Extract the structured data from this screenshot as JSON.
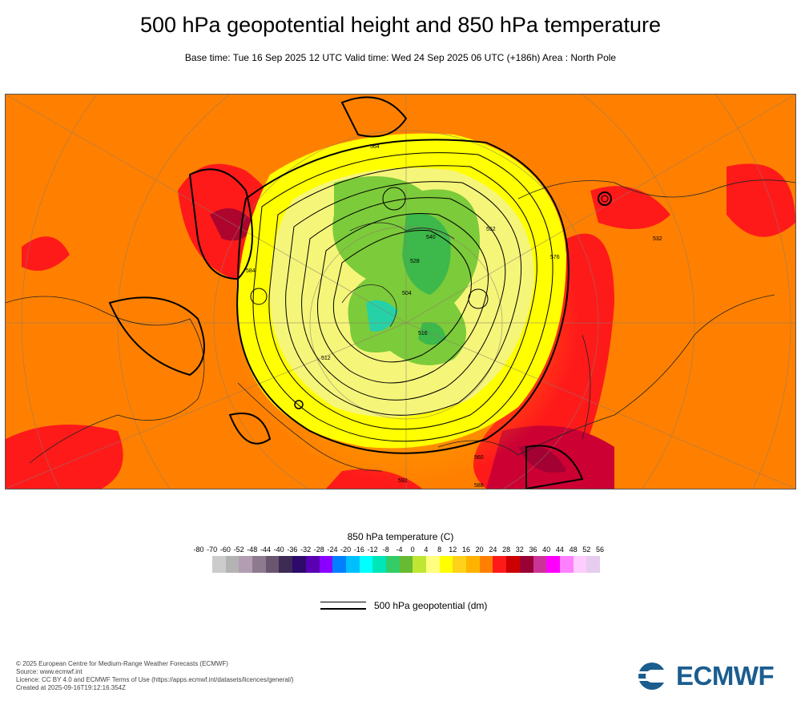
{
  "header": {
    "title": "500 hPa geopotential height and 850 hPa temperature",
    "subtitle": "Base time: Tue 16 Sep 2025 12 UTC Valid time: Wed 24 Sep 2025 06 UTC (+186h) Area : North Pole"
  },
  "map": {
    "contour_labels": [
      "584",
      "552",
      "528",
      "504",
      "516",
      "540",
      "576",
      "588",
      "592",
      "564",
      "560",
      "532",
      "512"
    ],
    "colors": {
      "warm_background": "#ff8000",
      "hot": "#ff1a1a",
      "very_hot": "#cc0033",
      "mild": "#ffbf00",
      "cool": "#ffff00",
      "cooler": "#f3f36f",
      "cold": "#7ccb3a",
      "colder": "#3db84a",
      "coldest": "#26d1a7"
    }
  },
  "legend": {
    "title": "850 hPa temperature (C)",
    "ticks": [
      "-80",
      "-70",
      "-60",
      "-52",
      "-48",
      "-44",
      "-40",
      "-36",
      "-32",
      "-28",
      "-24",
      "-20",
      "-16",
      "-12",
      "-8",
      "-4",
      "0",
      "4",
      "8",
      "12",
      "16",
      "20",
      "24",
      "28",
      "32",
      "36",
      "40",
      "44",
      "48",
      "52",
      "56"
    ],
    "colors": [
      "#e6e6e6",
      "#cccccc",
      "#b3b3b3",
      "#b39db3",
      "#8e7a8e",
      "#6b5670",
      "#3d2b55",
      "#2e0a6b",
      "#5a00b3",
      "#8a00ff",
      "#0080ff",
      "#00bfff",
      "#00ffff",
      "#00e6b8",
      "#33cc66",
      "#66bb33",
      "#bfe633",
      "#ffff80",
      "#ffff00",
      "#ffd11a",
      "#ffb300",
      "#ff8000",
      "#ff1a1a",
      "#cc0000",
      "#990033",
      "#cc3399",
      "#ff00ff",
      "#ff80ff",
      "#ffccff",
      "#e6ccee",
      "#e6e6e6"
    ],
    "line_label": "500 hPa geopotential (dm)"
  },
  "footer": {
    "copyright": "© 2025 European Centre for Medium-Range Weather Forecasts (ECMWF)",
    "source": "Source: www.ecmwf.int",
    "licence": "Licence: CC BY 4.0 and ECMWF Terms of Use (https://apps.ecmwf.int/datasets/licences/general/)",
    "created": "Created at 2025-09-16T19:12:16.354Z"
  },
  "logo": {
    "text": "ECMWF",
    "color": "#1b5d8f"
  }
}
